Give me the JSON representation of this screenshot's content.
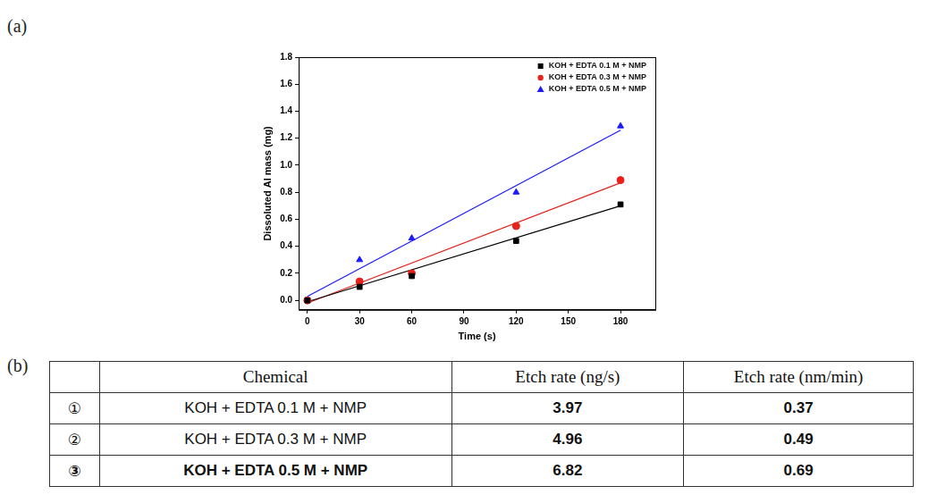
{
  "panels": {
    "a": "(a)",
    "b": "(b)"
  },
  "chart_data": {
    "type": "scatter",
    "x_label": "Time (s)",
    "y_label": "Dissoluted Al mass (mg)",
    "xlim": [
      -5,
      200
    ],
    "xticks": [
      0,
      30,
      60,
      90,
      120,
      150,
      180
    ],
    "ylim": [
      -0.07,
      1.8
    ],
    "yticks": [
      {
        "value": 0,
        "label": "0.0"
      },
      0.2,
      0.4,
      0.6,
      0.8,
      {
        "value": 1,
        "label": "1.0"
      },
      1.2,
      1.4,
      1.6,
      1.8
    ],
    "grid": false,
    "legend": "top-right",
    "series": [
      {
        "name": "KOH + EDTA 0.1 M + NMP",
        "color": "#000000",
        "marker": "square",
        "line_style": "solid",
        "x": [
          0,
          30,
          60,
          120,
          180
        ],
        "values": [
          0.0,
          0.1,
          0.18,
          0.44,
          0.71
        ],
        "fit": {
          "x": [
            0,
            180
          ],
          "values": [
            -0.01,
            0.7
          ]
        }
      },
      {
        "name": "KOH + EDTA 0.3 M + NMP",
        "color": "#e8211b",
        "marker": "circle",
        "line_style": "solid",
        "x": [
          0,
          30,
          60,
          120,
          180
        ],
        "values": [
          0.0,
          0.14,
          0.2,
          0.55,
          0.89
        ],
        "fit": {
          "x": [
            0,
            180
          ],
          "values": [
            -0.02,
            0.87
          ]
        }
      },
      {
        "name": "KOH + EDTA 0.5 M + NMP",
        "color": "#1a1aff",
        "marker": "triangle",
        "line_style": "solid",
        "x": [
          0,
          30,
          60,
          120,
          180
        ],
        "values": [
          0.0,
          0.3,
          0.46,
          0.8,
          1.29
        ],
        "fit": {
          "x": [
            0,
            180
          ],
          "values": [
            0.03,
            1.26
          ]
        }
      }
    ]
  },
  "table": {
    "header": [
      "Chemical",
      "Etch rate (ng/s)",
      "Etch rate (nm/min)"
    ],
    "rows": [
      [
        "①",
        "KOH + EDTA 0.1 M + NMP",
        "3.97",
        "0.37"
      ],
      [
        "②",
        "KOH + EDTA 0.3 M + NMP",
        "4.96",
        "0.49"
      ],
      [
        "③",
        "KOH + EDTA 0.5 M + NMP",
        "6.82",
        "0.69"
      ]
    ]
  }
}
